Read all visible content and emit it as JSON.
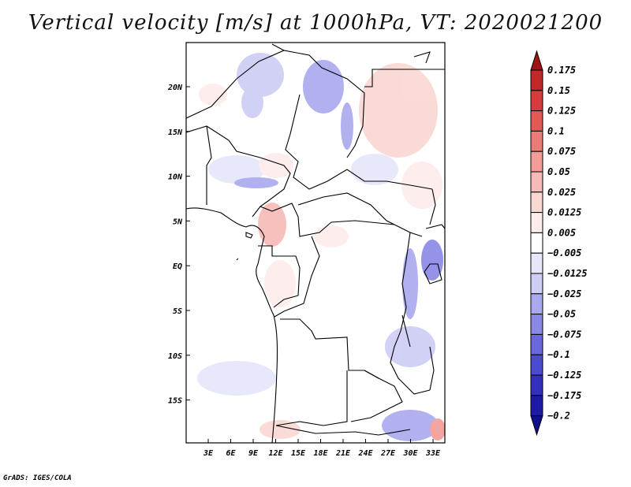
{
  "title": "Vertical velocity [m/s] at 1000hPa, VT: 2020021200",
  "footer": "GrADS: IGES/COLA",
  "map": {
    "region": "Central Africa",
    "variable": "Vertical velocity",
    "units": "m/s",
    "level": "1000hPa",
    "valid_time": "2020021200"
  },
  "axes": {
    "lat_ticks": [
      "20N",
      "15N",
      "10N",
      "5N",
      "EQ",
      "5S",
      "10S",
      "15S"
    ],
    "lon_ticks": [
      "3E",
      "6E",
      "9E",
      "12E",
      "15E",
      "18E",
      "21E",
      "24E",
      "27E",
      "30E",
      "33E"
    ]
  },
  "colorbar": {
    "labels": [
      "0.175",
      "0.15",
      "0.125",
      "0.1",
      "0.075",
      "0.05",
      "0.025",
      "0.0125",
      "0.005",
      "-0.005",
      "-0.0125",
      "-0.025",
      "-0.05",
      "-0.075",
      "-0.1",
      "-0.125",
      "-0.175",
      "-0.2"
    ],
    "colors": [
      "#a11414",
      "#c0282a",
      "#d63c3c",
      "#e25a56",
      "#eb7b76",
      "#f19c97",
      "#f6bbb6",
      "#fad7d3",
      "#fdecea",
      "#ffffff",
      "#e6e6fb",
      "#cdcdf6",
      "#a9a9ef",
      "#8a88e6",
      "#6a68dc",
      "#4c4acf",
      "#3230bc",
      "#1d1ba5",
      "#120f8a"
    ]
  }
}
